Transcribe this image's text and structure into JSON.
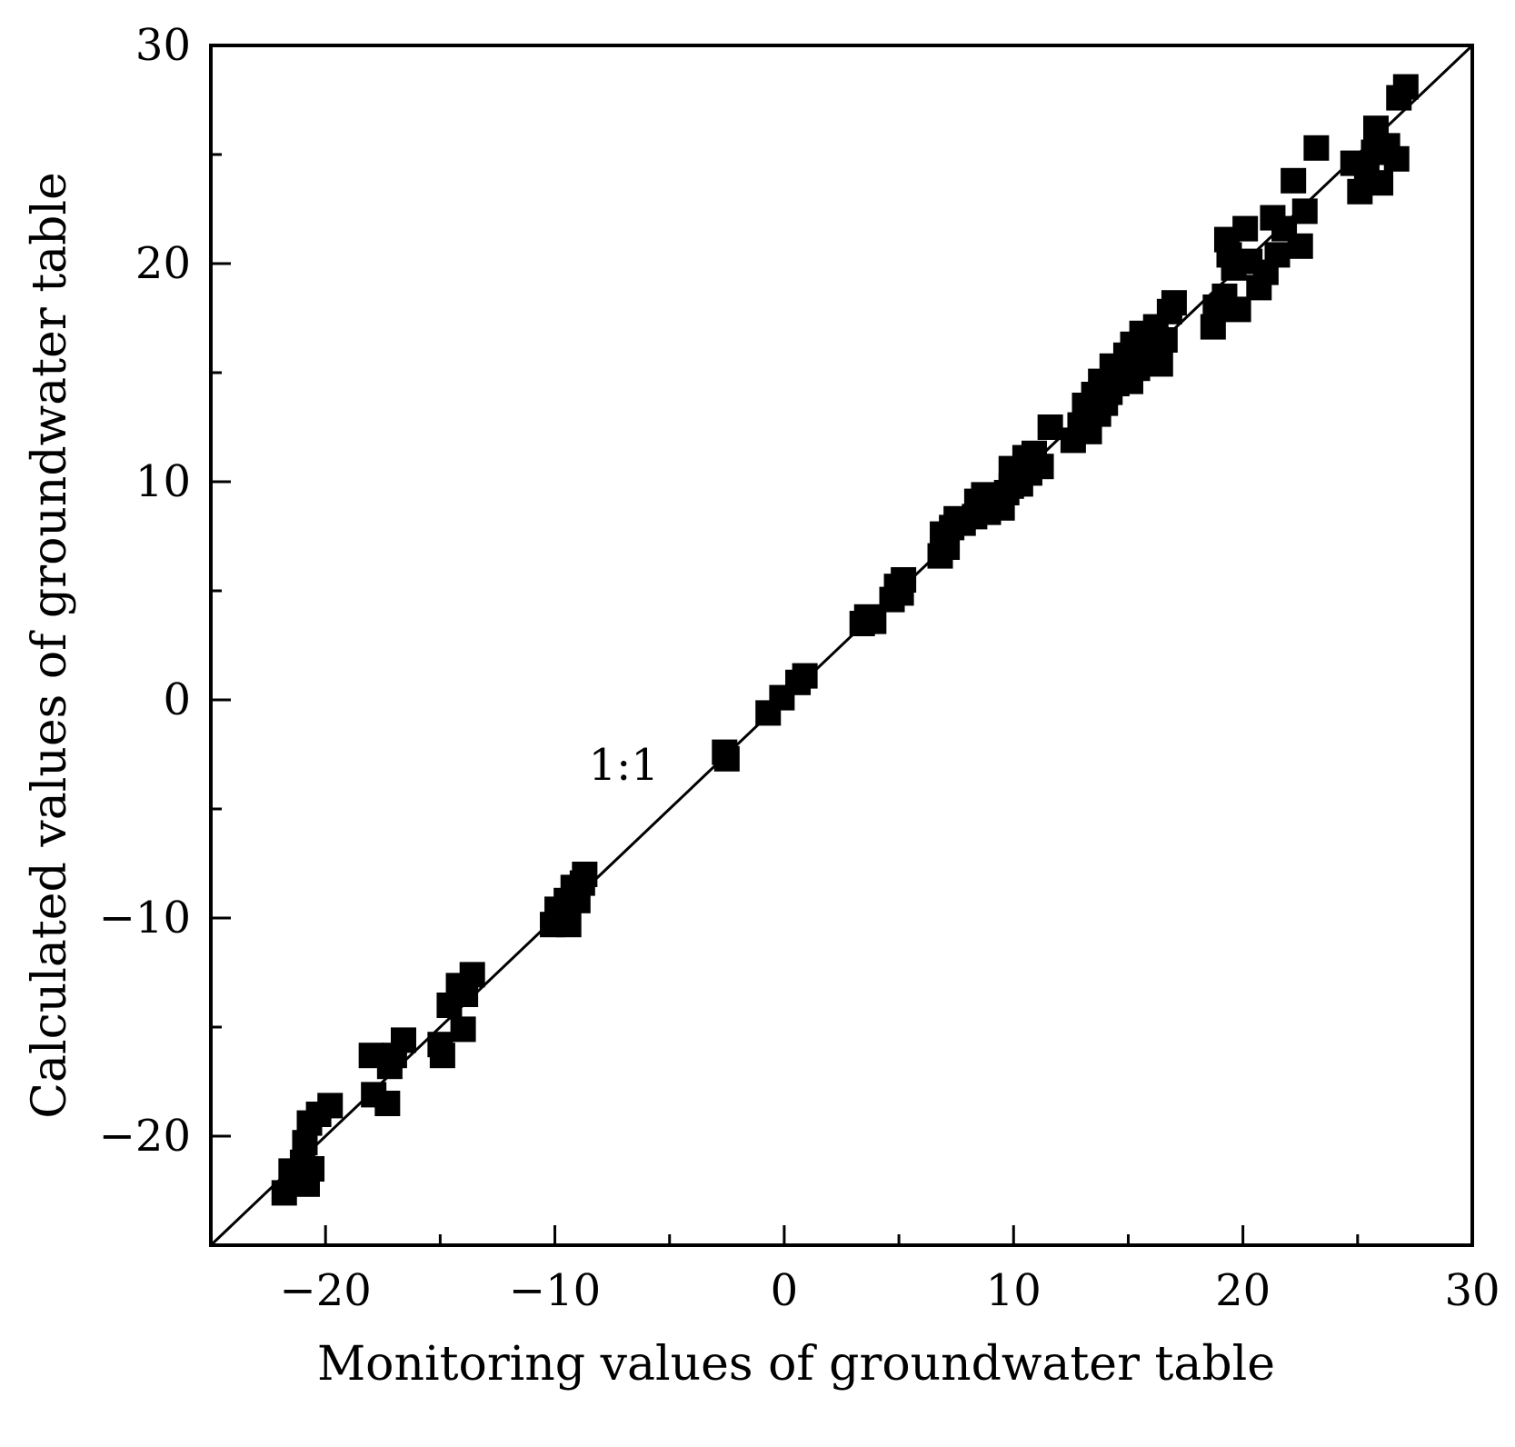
{
  "chart_data": {
    "type": "scatter",
    "title": "",
    "xlabel": "Monitoring values of groundwater table",
    "ylabel": "Calculated values of groundwater table",
    "xlim": [
      -25,
      30
    ],
    "ylim": [
      -25,
      30
    ],
    "x_ticks": [
      -20,
      -10,
      0,
      10,
      20,
      30
    ],
    "y_ticks": [
      -20,
      -10,
      0,
      10,
      20,
      30
    ],
    "x_tick_labels": [
      "−20",
      "−10",
      "0",
      "10",
      "20",
      "30"
    ],
    "y_tick_labels": [
      "−20",
      "−10",
      "0",
      "10",
      "20",
      "30"
    ],
    "grid": false,
    "marker": "square",
    "colors": {
      "marker": "#000000",
      "line": "#000000",
      "axis": "#000000"
    },
    "reference_line": {
      "label": "1:1",
      "from": [
        -25,
        -25
      ],
      "to": [
        30,
        30
      ]
    },
    "annotations": [
      {
        "text": "1:1",
        "x": -7,
        "y": -3
      }
    ],
    "series": [
      {
        "points": [
          [
            -21.8,
            -22.6
          ],
          [
            -21.5,
            -21.6
          ],
          [
            -21.0,
            -21.2
          ],
          [
            -20.8,
            -22.2
          ],
          [
            -20.6,
            -21.5
          ],
          [
            -20.9,
            -20.3
          ],
          [
            -20.7,
            -19.4
          ],
          [
            -20.3,
            -19.0
          ],
          [
            -19.8,
            -18.6
          ],
          [
            -18.0,
            -16.3
          ],
          [
            -17.9,
            -18.1
          ],
          [
            -17.3,
            -18.5
          ],
          [
            -17.2,
            -16.8
          ],
          [
            -17.0,
            -16.3
          ],
          [
            -16.6,
            -15.6
          ],
          [
            -15.0,
            -15.8
          ],
          [
            -14.9,
            -16.3
          ],
          [
            -14.6,
            -14.0
          ],
          [
            -14.2,
            -13.1
          ],
          [
            -14.0,
            -15.1
          ],
          [
            -13.9,
            -13.5
          ],
          [
            -13.6,
            -12.6
          ],
          [
            -10.1,
            -10.3
          ],
          [
            -9.9,
            -9.6
          ],
          [
            -9.6,
            -10.1
          ],
          [
            -9.5,
            -9.2
          ],
          [
            -9.4,
            -10.3
          ],
          [
            -9.2,
            -8.6
          ],
          [
            -9.0,
            -9.2
          ],
          [
            -8.8,
            -8.4
          ],
          [
            -8.7,
            -8.0
          ],
          [
            -2.6,
            -2.4
          ],
          [
            -2.5,
            -2.7
          ],
          [
            -0.7,
            -0.6
          ],
          [
            -0.1,
            0.1
          ],
          [
            0.6,
            0.8
          ],
          [
            0.9,
            1.1
          ],
          [
            3.4,
            3.5
          ],
          [
            3.6,
            3.8
          ],
          [
            3.9,
            3.6
          ],
          [
            4.7,
            4.6
          ],
          [
            4.9,
            5.2
          ],
          [
            5.1,
            4.9
          ],
          [
            5.2,
            5.5
          ],
          [
            6.8,
            6.6
          ],
          [
            6.9,
            7.6
          ],
          [
            7.1,
            7.0
          ],
          [
            7.3,
            7.9
          ],
          [
            7.5,
            8.3
          ],
          [
            7.8,
            8.1
          ],
          [
            8.3,
            8.4
          ],
          [
            8.4,
            9.1
          ],
          [
            8.6,
            8.7
          ],
          [
            8.7,
            9.4
          ],
          [
            8.9,
            8.6
          ],
          [
            9.1,
            9.2
          ],
          [
            9.3,
            9.0
          ],
          [
            9.5,
            8.8
          ],
          [
            9.7,
            9.5
          ],
          [
            9.9,
            9.8
          ],
          [
            9.9,
            10.6
          ],
          [
            10.1,
            10.2
          ],
          [
            10.3,
            9.9
          ],
          [
            10.5,
            11.1
          ],
          [
            10.7,
            10.4
          ],
          [
            10.9,
            11.3
          ],
          [
            11.2,
            10.7
          ],
          [
            11.6,
            12.5
          ],
          [
            12.6,
            11.9
          ],
          [
            12.9,
            12.6
          ],
          [
            13.1,
            13.5
          ],
          [
            13.3,
            12.3
          ],
          [
            13.5,
            14.0
          ],
          [
            13.7,
            13.1
          ],
          [
            13.8,
            14.6
          ],
          [
            14.0,
            13.6
          ],
          [
            14.2,
            14.1
          ],
          [
            14.3,
            15.3
          ],
          [
            14.5,
            14.5
          ],
          [
            14.7,
            15.0
          ],
          [
            14.9,
            15.8
          ],
          [
            15.1,
            14.6
          ],
          [
            15.2,
            16.3
          ],
          [
            15.4,
            15.2
          ],
          [
            15.6,
            16.8
          ],
          [
            15.8,
            15.9
          ],
          [
            16.0,
            16.2
          ],
          [
            16.2,
            17.1
          ],
          [
            16.4,
            15.4
          ],
          [
            16.6,
            16.5
          ],
          [
            16.8,
            17.8
          ],
          [
            17.0,
            18.2
          ],
          [
            18.7,
            17.1
          ],
          [
            18.8,
            18.0
          ],
          [
            19.2,
            18.5
          ],
          [
            19.3,
            21.1
          ],
          [
            19.4,
            20.4
          ],
          [
            19.6,
            19.8
          ],
          [
            19.8,
            17.9
          ],
          [
            20.1,
            21.6
          ],
          [
            20.3,
            20.1
          ],
          [
            20.7,
            18.9
          ],
          [
            21.0,
            19.6
          ],
          [
            21.3,
            22.1
          ],
          [
            21.5,
            20.4
          ],
          [
            21.8,
            21.6
          ],
          [
            22.2,
            23.8
          ],
          [
            22.5,
            20.8
          ],
          [
            22.7,
            22.4
          ],
          [
            23.2,
            25.3
          ],
          [
            24.8,
            24.6
          ],
          [
            25.1,
            23.3
          ],
          [
            25.4,
            24.2
          ],
          [
            25.7,
            25.1
          ],
          [
            25.8,
            26.2
          ],
          [
            26.0,
            23.7
          ],
          [
            26.3,
            25.4
          ],
          [
            26.7,
            24.8
          ],
          [
            26.8,
            27.6
          ],
          [
            27.1,
            28.1
          ]
        ]
      }
    ]
  }
}
